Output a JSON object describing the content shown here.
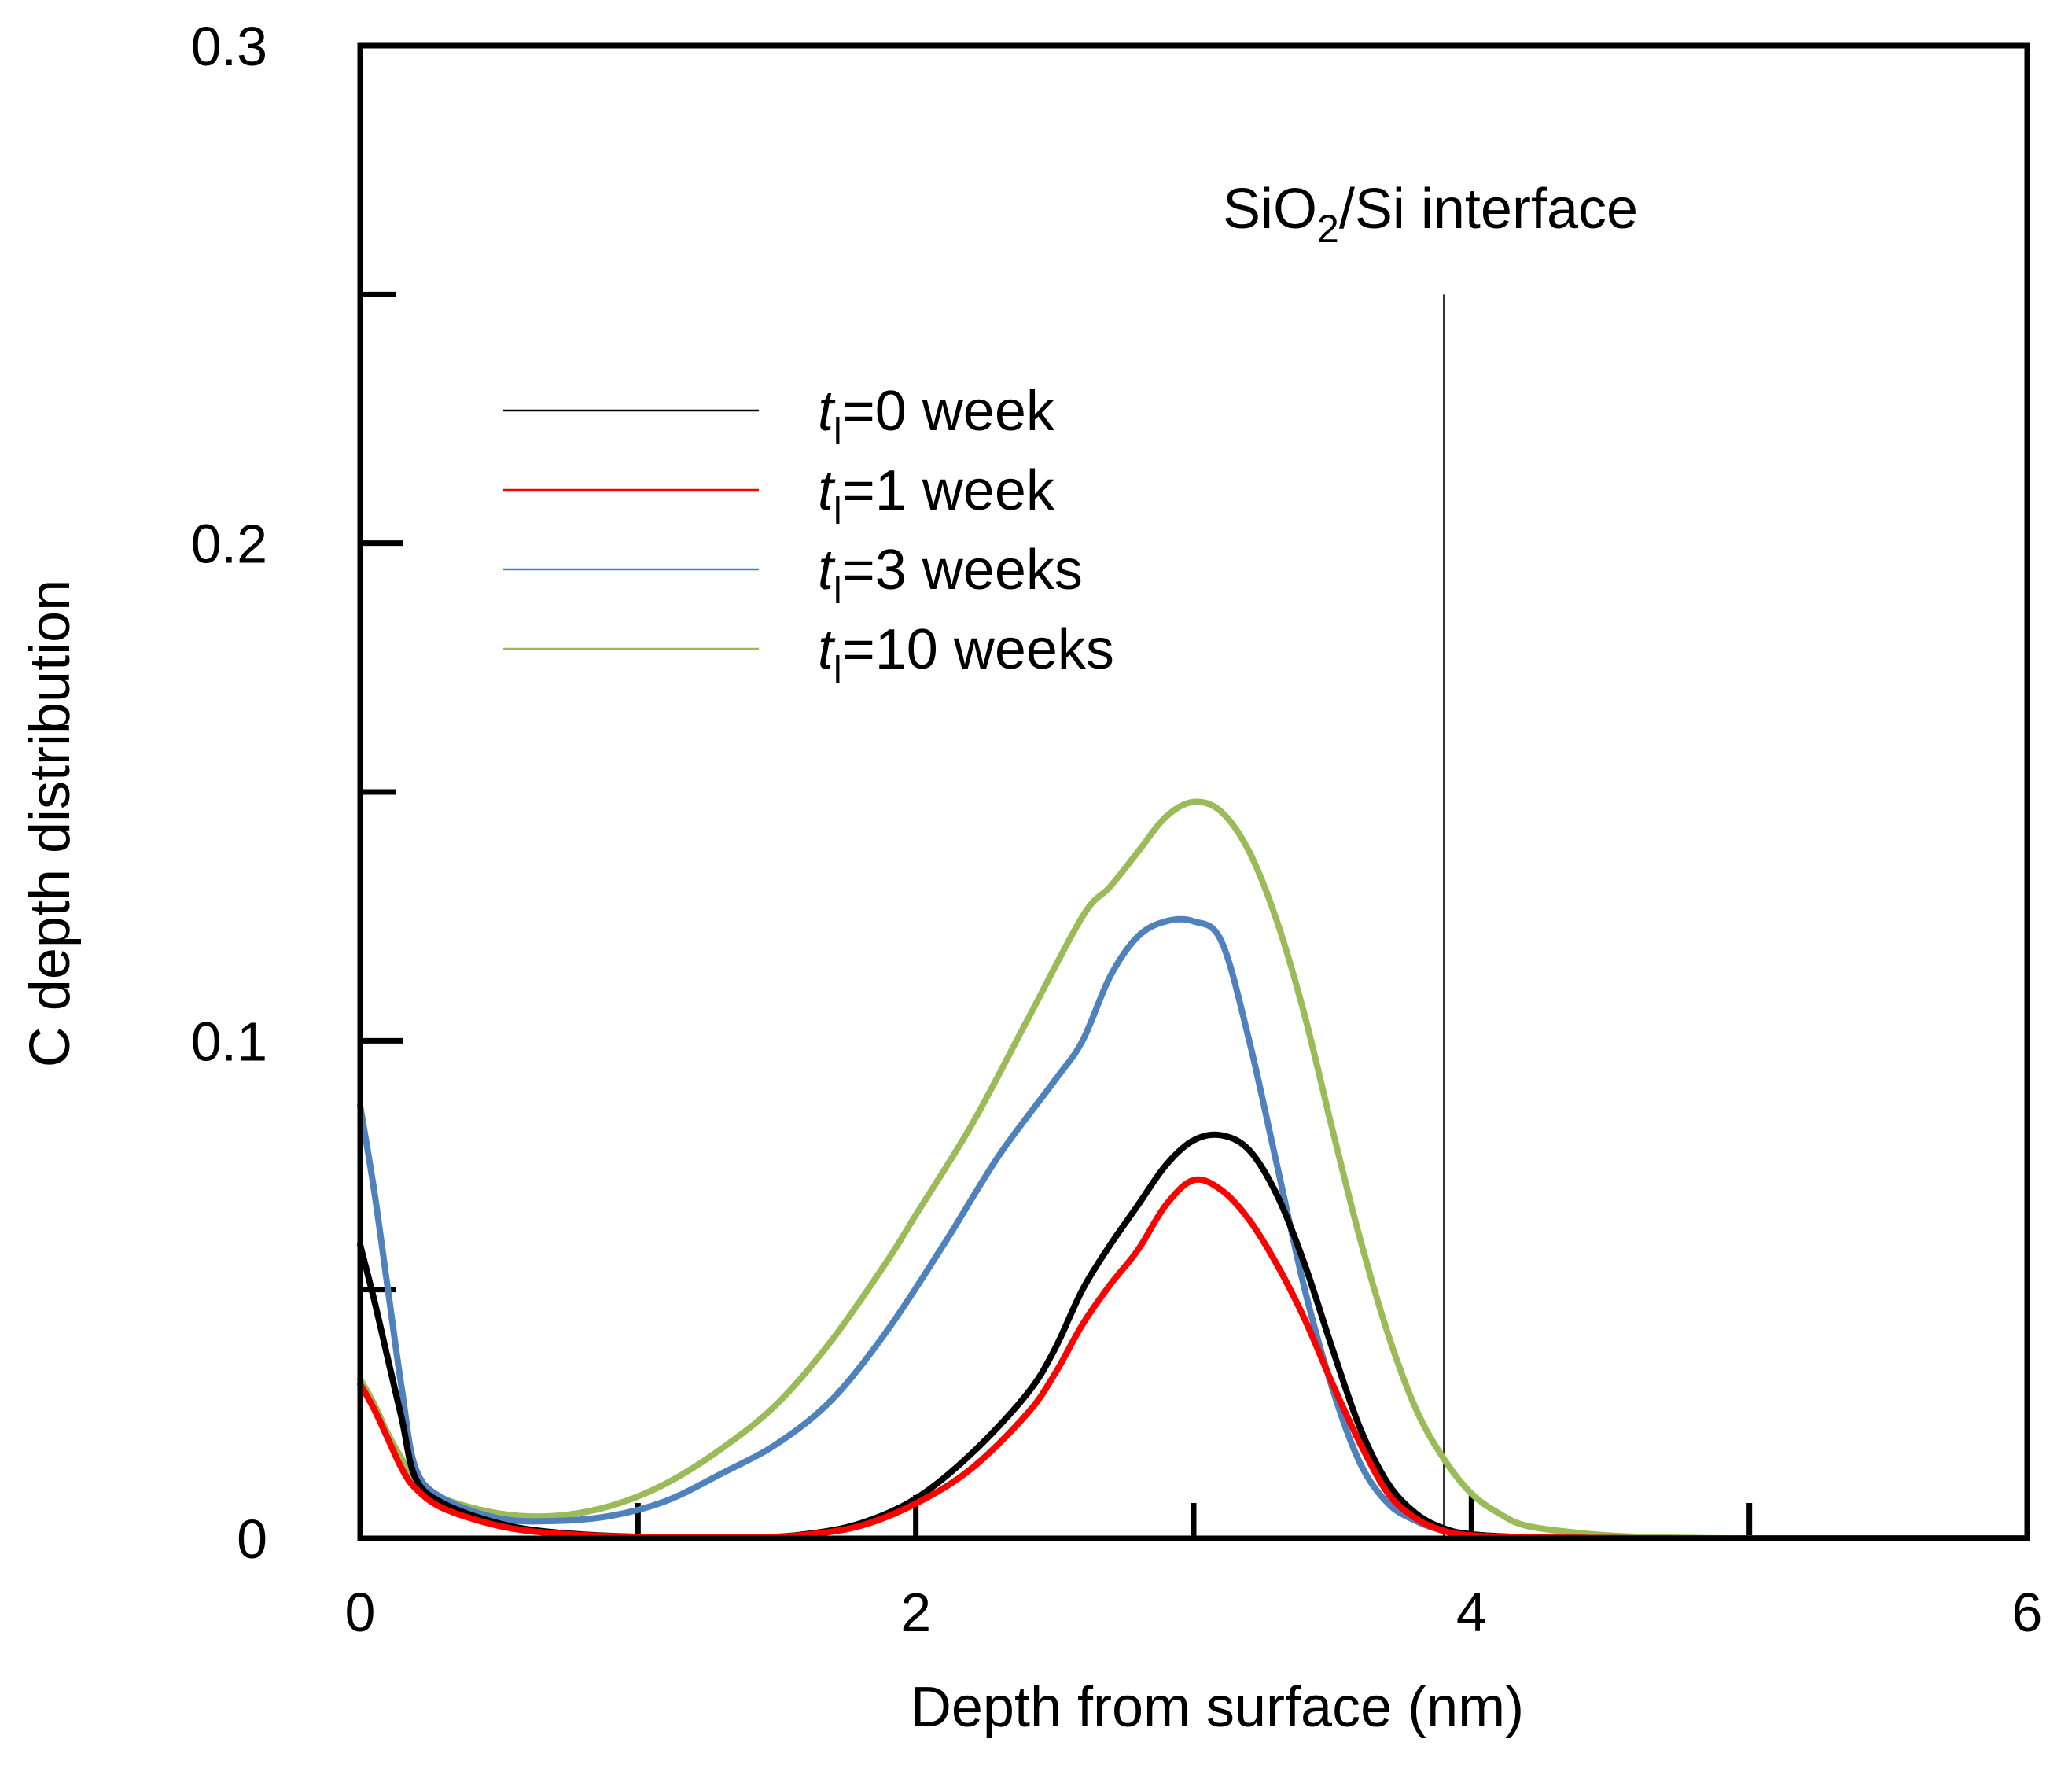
{
  "chart_data": {
    "type": "line",
    "title": "",
    "xlabel": "Depth from surface (nm)",
    "ylabel": "C depth distribution",
    "xlim": [
      0,
      6
    ],
    "ylim": [
      0,
      0.3
    ],
    "x_major_ticks": [
      0,
      2,
      4,
      6
    ],
    "x_minor_ticks": [
      1,
      3,
      5
    ],
    "y_major_ticks": [
      0,
      0.1,
      0.2,
      0.3
    ],
    "y_minor_ticks": [
      0.05,
      0.15,
      0.25
    ],
    "x_tick_labels": [
      "0",
      "2",
      "4",
      "6"
    ],
    "y_tick_labels": [
      "0",
      "0.1",
      "0.2",
      "0.3"
    ],
    "grid": false,
    "legend_position": "upper-left",
    "annotation": {
      "text_main": "SiO",
      "text_sub": "2",
      "text_rest": "/Si interface",
      "x": 3.9,
      "line_top_y": 0.25
    },
    "series": [
      {
        "name": "t_l=0 week",
        "legend_t": "t",
        "legend_sub": "l",
        "legend_rest": "=0 week",
        "color": "#000000",
        "x": [
          0,
          0.05,
          0.1,
          0.15,
          0.2,
          0.3,
          0.5,
          0.7,
          1.0,
          1.4,
          1.6,
          1.8,
          2.0,
          2.2,
          2.4,
          2.5,
          2.6,
          2.7,
          2.8,
          2.9,
          3.0,
          3.1,
          3.2,
          3.3,
          3.4,
          3.5,
          3.6,
          3.7,
          3.8,
          3.9,
          4.0,
          4.2,
          4.4,
          4.6,
          5.0,
          5.5,
          6.0
        ],
        "y": [
          0.059,
          0.048,
          0.036,
          0.024,
          0.012,
          0.007,
          0.003,
          0.0012,
          0.0003,
          0.0002,
          0.0008,
          0.003,
          0.008,
          0.017,
          0.029,
          0.038,
          0.05,
          0.059,
          0.067,
          0.075,
          0.08,
          0.081,
          0.078,
          0.069,
          0.055,
          0.038,
          0.022,
          0.011,
          0.005,
          0.002,
          0.0008,
          0.0002,
          0.0001,
          0,
          0,
          0,
          0
        ]
      },
      {
        "name": "t_l=1 week",
        "legend_t": "t",
        "legend_sub": "l",
        "legend_rest": "=1 week",
        "color": "#ff0000",
        "x": [
          0,
          0.05,
          0.1,
          0.15,
          0.2,
          0.3,
          0.5,
          0.7,
          1.0,
          1.4,
          1.6,
          1.8,
          2.0,
          2.2,
          2.4,
          2.5,
          2.6,
          2.7,
          2.8,
          2.9,
          3.0,
          3.1,
          3.2,
          3.3,
          3.4,
          3.5,
          3.6,
          3.7,
          3.8,
          3.9,
          4.0,
          4.2,
          4.4,
          4.6,
          5.0,
          5.5,
          6.0
        ],
        "y": [
          0.031,
          0.026,
          0.02,
          0.014,
          0.01,
          0.006,
          0.0025,
          0.001,
          0.0003,
          0.0002,
          0.0007,
          0.0025,
          0.007,
          0.014,
          0.025,
          0.033,
          0.043,
          0.051,
          0.058,
          0.067,
          0.072,
          0.07,
          0.064,
          0.055,
          0.044,
          0.031,
          0.019,
          0.009,
          0.004,
          0.0015,
          0.0006,
          0.0002,
          0.0001,
          0,
          0,
          0,
          0
        ]
      },
      {
        "name": "t_l=3 weeks",
        "legend_t": "t",
        "legend_sub": "l",
        "legend_rest": "=3 weeks",
        "color": "#4f81bd",
        "x": [
          0,
          0.05,
          0.1,
          0.15,
          0.2,
          0.3,
          0.5,
          0.7,
          0.9,
          1.1,
          1.3,
          1.5,
          1.7,
          1.9,
          2.1,
          2.3,
          2.5,
          2.6,
          2.7,
          2.8,
          2.9,
          3.0,
          3.1,
          3.2,
          3.3,
          3.4,
          3.5,
          3.6,
          3.7,
          3.8,
          3.9,
          4.0,
          4.2,
          4.4,
          4.6,
          5.0,
          5.5,
          6.0
        ],
        "y": [
          0.087,
          0.07,
          0.05,
          0.03,
          0.014,
          0.008,
          0.004,
          0.0035,
          0.0045,
          0.0075,
          0.013,
          0.019,
          0.028,
          0.042,
          0.059,
          0.077,
          0.092,
          0.1,
          0.113,
          0.121,
          0.124,
          0.124,
          0.12,
          0.1,
          0.075,
          0.05,
          0.03,
          0.015,
          0.007,
          0.0035,
          0.0015,
          0.0007,
          0.0002,
          0.0001,
          0,
          0,
          0,
          0
        ]
      },
      {
        "name": "t_l=10 weeks",
        "legend_t": "t",
        "legend_sub": "l",
        "legend_rest": "=10 weeks",
        "color": "#9bbb59",
        "x": [
          0,
          0.05,
          0.1,
          0.15,
          0.2,
          0.3,
          0.5,
          0.7,
          0.9,
          1.1,
          1.3,
          1.5,
          1.7,
          1.9,
          2.0,
          2.2,
          2.4,
          2.6,
          2.7,
          2.8,
          2.9,
          3.0,
          3.1,
          3.2,
          3.3,
          3.4,
          3.5,
          3.6,
          3.7,
          3.8,
          3.9,
          4.0,
          4.1,
          4.2,
          4.4,
          4.6,
          4.8,
          5.0,
          5.5,
          6.0
        ],
        "y": [
          0.032,
          0.027,
          0.021,
          0.016,
          0.012,
          0.008,
          0.005,
          0.0045,
          0.0065,
          0.011,
          0.018,
          0.027,
          0.04,
          0.056,
          0.065,
          0.083,
          0.104,
          0.125,
          0.131,
          0.138,
          0.145,
          0.148,
          0.146,
          0.138,
          0.124,
          0.105,
          0.082,
          0.06,
          0.041,
          0.026,
          0.016,
          0.009,
          0.005,
          0.0025,
          0.001,
          0.0003,
          0.0001,
          0,
          0,
          0
        ]
      }
    ]
  }
}
